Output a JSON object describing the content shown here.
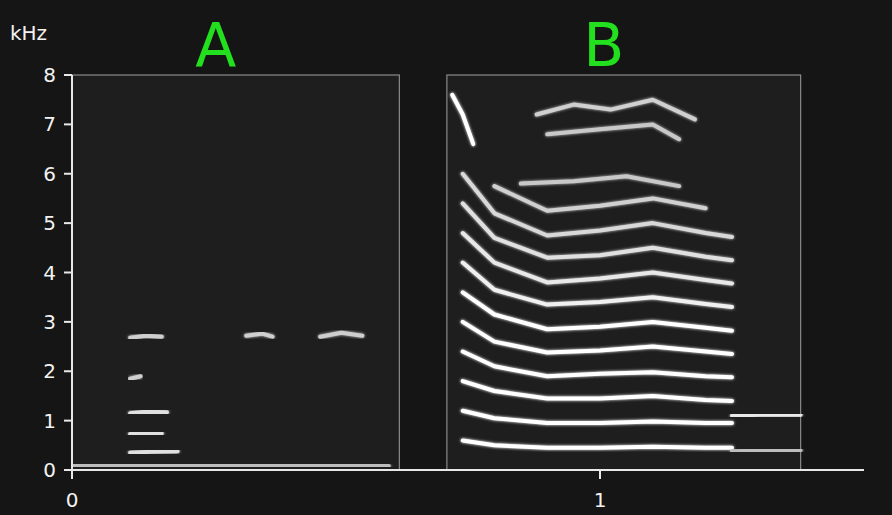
{
  "chart_data": {
    "type": "spectrogram",
    "y_label": "kHz",
    "xlim": [
      0,
      1.5
    ],
    "xticks": [
      0,
      1
    ],
    "ylim": [
      0,
      8
    ],
    "yticks": [
      0,
      1,
      2,
      3,
      4,
      5,
      6,
      7,
      8
    ],
    "grid": false,
    "panels": [
      {
        "label": "A",
        "x": [
          0,
          0.62
        ],
        "color": "#22e01e"
      },
      {
        "label": "B",
        "x": [
          0.71,
          1.38
        ],
        "color": "#22e01e"
      }
    ],
    "series": [
      {
        "x": [
          0.0,
          0.2,
          0.4,
          0.6
        ],
        "values": [
          0.08,
          0.1,
          0.1,
          0.08
        ],
        "color": "#bdbdbd"
      },
      {
        "x": [
          0.11,
          0.15,
          0.2
        ],
        "values": [
          0.35,
          0.37,
          0.38
        ],
        "color": "#e0e0e0"
      },
      {
        "x": [
          0.11,
          0.14,
          0.17
        ],
        "values": [
          0.73,
          0.75,
          0.74
        ],
        "color": "#e0e0e0"
      },
      {
        "x": [
          0.11,
          0.14,
          0.18
        ],
        "values": [
          1.15,
          1.18,
          1.17
        ],
        "color": "#e0e0e0"
      },
      {
        "x": [
          0.11,
          0.13
        ],
        "values": [
          1.85,
          1.9
        ],
        "color": "#cfcfcf"
      },
      {
        "x": [
          0.11,
          0.14,
          0.17
        ],
        "values": [
          2.68,
          2.72,
          2.7
        ],
        "color": "#cfcfcf"
      },
      {
        "x": [
          0.33,
          0.36,
          0.38
        ],
        "values": [
          2.72,
          2.76,
          2.7
        ],
        "color": "#cfcfcf"
      },
      {
        "x": [
          0.47,
          0.51,
          0.55
        ],
        "values": [
          2.7,
          2.78,
          2.72
        ],
        "color": "#cfcfcf"
      },
      {
        "x": [
          0.74,
          0.8,
          0.9,
          1.0,
          1.1,
          1.2,
          1.25
        ],
        "values": [
          0.6,
          0.5,
          0.45,
          0.45,
          0.47,
          0.45,
          0.45
        ],
        "color": "#ffffff"
      },
      {
        "x": [
          0.74,
          0.8,
          0.9,
          1.0,
          1.1,
          1.2,
          1.25
        ],
        "values": [
          1.2,
          1.05,
          0.95,
          0.95,
          0.98,
          0.95,
          0.95
        ],
        "color": "#ffffff"
      },
      {
        "x": [
          0.74,
          0.8,
          0.9,
          1.0,
          1.1,
          1.2,
          1.25
        ],
        "values": [
          1.8,
          1.6,
          1.45,
          1.45,
          1.5,
          1.42,
          1.4
        ],
        "color": "#ffffff"
      },
      {
        "x": [
          0.74,
          0.8,
          0.9,
          1.0,
          1.1,
          1.2,
          1.25
        ],
        "values": [
          2.4,
          2.1,
          1.9,
          1.95,
          1.98,
          1.9,
          1.88
        ],
        "color": "#ffffff"
      },
      {
        "x": [
          0.74,
          0.8,
          0.9,
          1.0,
          1.1,
          1.2,
          1.25
        ],
        "values": [
          3.0,
          2.6,
          2.38,
          2.42,
          2.5,
          2.4,
          2.35
        ],
        "color": "#ffffff"
      },
      {
        "x": [
          0.74,
          0.8,
          0.9,
          1.0,
          1.1,
          1.2,
          1.25
        ],
        "values": [
          3.6,
          3.15,
          2.85,
          2.9,
          3.0,
          2.88,
          2.82
        ],
        "color": "#ffffff"
      },
      {
        "x": [
          0.74,
          0.8,
          0.9,
          1.0,
          1.1,
          1.2,
          1.25
        ],
        "values": [
          4.2,
          3.65,
          3.35,
          3.4,
          3.5,
          3.36,
          3.3
        ],
        "color": "#f0f0f0"
      },
      {
        "x": [
          0.74,
          0.8,
          0.9,
          1.0,
          1.1,
          1.2,
          1.25
        ],
        "values": [
          4.8,
          4.2,
          3.8,
          3.88,
          4.0,
          3.85,
          3.78
        ],
        "color": "#e8e8e8"
      },
      {
        "x": [
          0.74,
          0.8,
          0.9,
          1.0,
          1.1,
          1.2,
          1.25
        ],
        "values": [
          5.4,
          4.7,
          4.3,
          4.35,
          4.5,
          4.32,
          4.25
        ],
        "color": "#e0e0e0"
      },
      {
        "x": [
          0.74,
          0.8,
          0.9,
          1.0,
          1.1,
          1.2,
          1.25
        ],
        "values": [
          6.0,
          5.2,
          4.75,
          4.85,
          5.0,
          4.8,
          4.72
        ],
        "color": "#d8d8d8"
      },
      {
        "x": [
          0.8,
          0.9,
          1.0,
          1.1,
          1.2
        ],
        "values": [
          5.75,
          5.25,
          5.35,
          5.5,
          5.3
        ],
        "color": "#d0d0d0"
      },
      {
        "x": [
          0.85,
          0.95,
          1.05,
          1.15
        ],
        "values": [
          5.8,
          5.85,
          5.95,
          5.75
        ],
        "color": "#c8c8c8"
      },
      {
        "x": [
          0.9,
          1.0,
          1.1,
          1.15
        ],
        "values": [
          6.8,
          6.9,
          7.0,
          6.7
        ],
        "color": "#c8c8c8"
      },
      {
        "x": [
          0.88,
          0.95,
          1.02,
          1.1,
          1.18
        ],
        "values": [
          7.2,
          7.4,
          7.3,
          7.5,
          7.1
        ],
        "color": "#d0d0d0"
      },
      {
        "x": [
          0.72,
          0.74,
          0.76
        ],
        "values": [
          7.6,
          7.2,
          6.6
        ],
        "color": "#ffffff"
      },
      {
        "x": [
          1.25,
          1.3,
          1.38
        ],
        "values": [
          1.1,
          1.12,
          1.12
        ],
        "color": "#e8e8e8"
      },
      {
        "x": [
          1.25,
          1.33,
          1.38
        ],
        "values": [
          0.38,
          0.4,
          0.4
        ],
        "color": "#bdbdbd"
      }
    ]
  }
}
